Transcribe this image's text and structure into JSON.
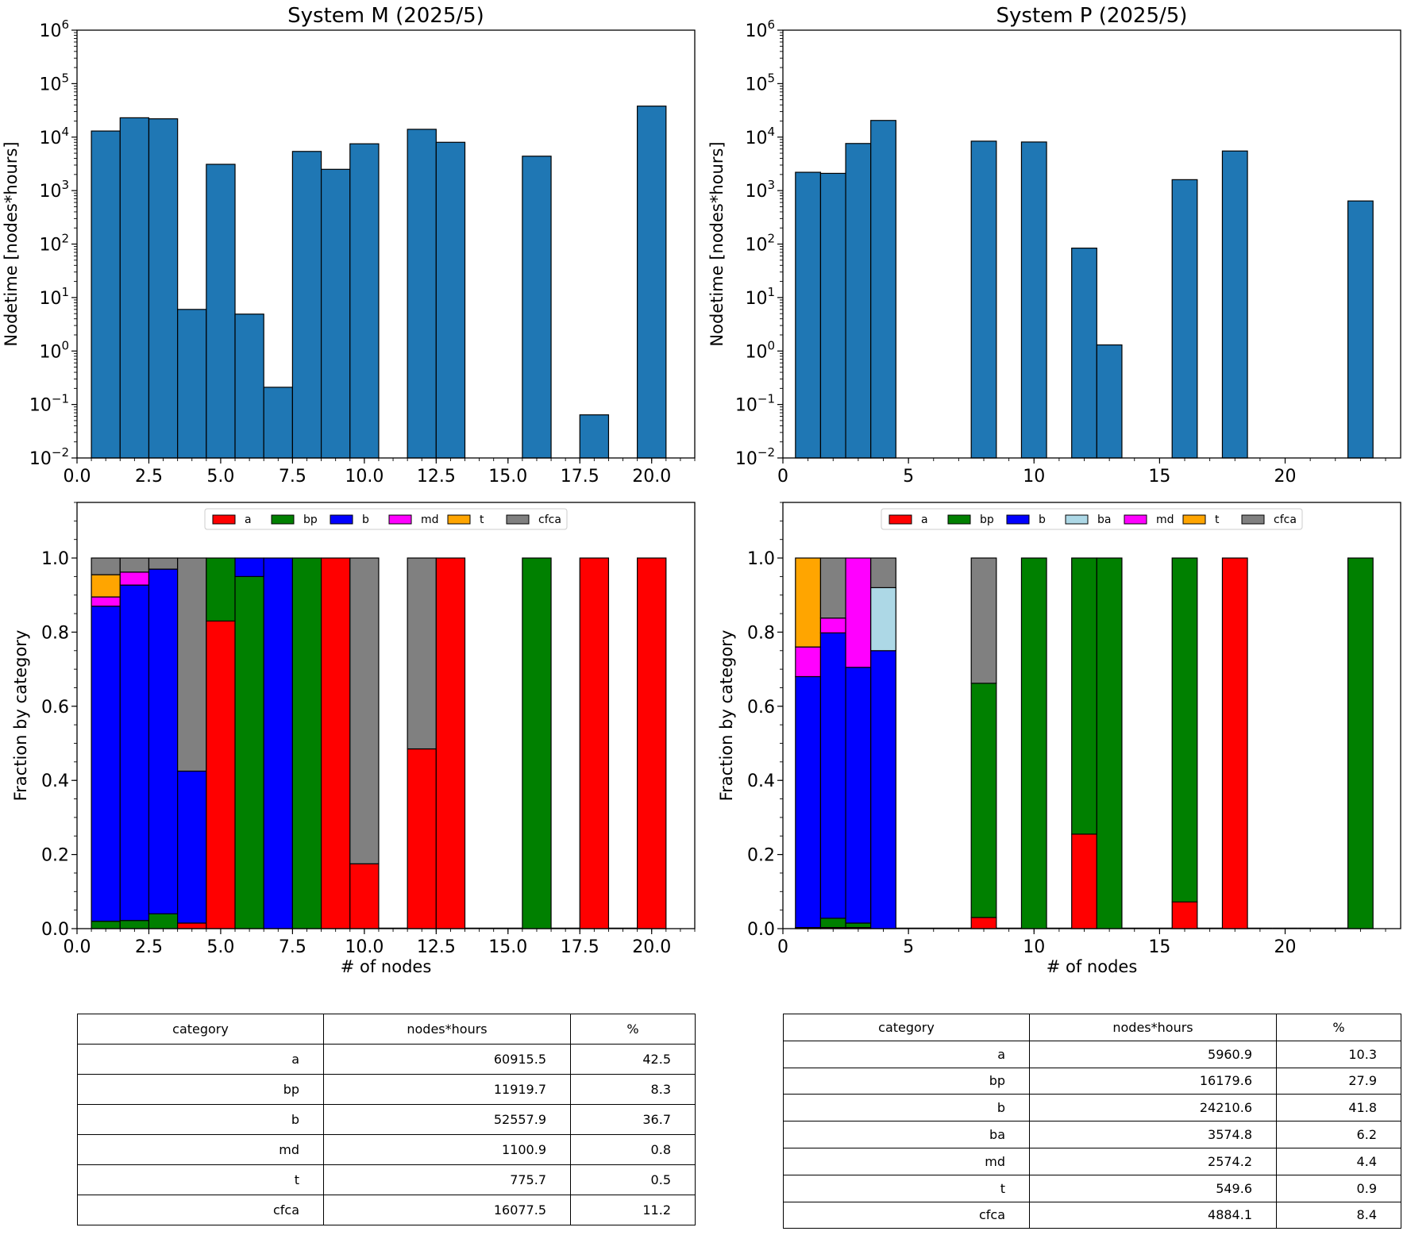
{
  "chart_data": [
    {
      "id": "histM",
      "type": "bar",
      "title": "System M (2025/5)",
      "xlabel": "",
      "ylabel": "Nodetime [nodes*hours]",
      "yscale": "log",
      "ylim": [
        0.01,
        1000000
      ],
      "xlim": [
        0,
        21.5
      ],
      "xticks": [
        "0.0",
        "2.5",
        "5.0",
        "7.5",
        "10.0",
        "12.5",
        "15.0",
        "17.5",
        "20.0"
      ],
      "x": [
        1,
        2,
        3,
        4,
        5,
        6,
        7,
        8,
        9,
        10,
        12,
        13,
        16,
        18,
        20
      ],
      "values": [
        13000,
        23000,
        22000,
        6,
        3100,
        4.9,
        0.21,
        5400,
        2500,
        7500,
        14000,
        8000,
        4400,
        0.064,
        38000
      ],
      "color": "#1f77b4"
    },
    {
      "id": "histP",
      "type": "bar",
      "title": "System P (2025/5)",
      "xlabel": "",
      "ylabel": "Nodetime [nodes*hours]",
      "yscale": "log",
      "ylim": [
        0.01,
        1000000
      ],
      "xlim": [
        0,
        24.6
      ],
      "xticks": [
        "0",
        "5",
        "10",
        "15",
        "20"
      ],
      "x": [
        1,
        2,
        3,
        4,
        8,
        10,
        12,
        13,
        16,
        18,
        23
      ],
      "values": [
        2200,
        2100,
        7600,
        20500,
        8400,
        8100,
        84,
        1.3,
        1600,
        5500,
        640
      ],
      "color": "#1f77b4"
    },
    {
      "id": "fracM",
      "type": "bar",
      "stacked": true,
      "xlabel": "# of nodes",
      "ylabel": "Fraction by category",
      "ylim": [
        0,
        1.15
      ],
      "xlim": [
        0,
        21.5
      ],
      "xticks": [
        "0.0",
        "2.5",
        "5.0",
        "7.5",
        "10.0",
        "12.5",
        "15.0",
        "17.5",
        "20.0"
      ],
      "yticks": [
        "0.0",
        "0.2",
        "0.4",
        "0.6",
        "0.8",
        "1.0"
      ],
      "x": [
        1,
        2,
        3,
        4,
        5,
        6,
        7,
        8,
        9,
        10,
        12,
        13,
        16,
        18,
        20
      ],
      "empty_x": [
        11,
        14,
        15,
        17,
        19
      ],
      "legend_position": "upper center",
      "series": [
        {
          "name": "a",
          "color": "#ff0000",
          "values": [
            0,
            0,
            0,
            0.015,
            0.83,
            0,
            0,
            0,
            1,
            0.175,
            0.485,
            1,
            0,
            1,
            1
          ]
        },
        {
          "name": "bp",
          "color": "#008000",
          "values": [
            0.02,
            0.022,
            0.04,
            0,
            0.17,
            0.95,
            0,
            1,
            0,
            0,
            0,
            0,
            1,
            0,
            0
          ]
        },
        {
          "name": "b",
          "color": "#0000ff",
          "values": [
            0.85,
            0.905,
            0.93,
            0.41,
            0,
            0.05,
            1,
            0,
            0,
            0,
            0,
            0,
            0,
            0,
            0
          ]
        },
        {
          "name": "md",
          "color": "#ff00ff",
          "values": [
            0.025,
            0.035,
            0,
            0,
            0,
            0,
            0,
            0,
            0,
            0,
            0,
            0,
            0,
            0,
            0
          ]
        },
        {
          "name": "t",
          "color": "#ffa500",
          "values": [
            0.06,
            0,
            0,
            0,
            0,
            0,
            0,
            0,
            0,
            0,
            0,
            0,
            0,
            0,
            0
          ]
        },
        {
          "name": "cfca",
          "color": "#808080",
          "values": [
            0.045,
            0.038,
            0.03,
            0.575,
            0,
            0,
            0,
            0,
            0,
            0.825,
            0.515,
            0,
            0,
            0,
            0
          ]
        }
      ]
    },
    {
      "id": "fracP",
      "type": "bar",
      "stacked": true,
      "xlabel": "# of nodes",
      "ylabel": "Fraction by category",
      "ylim": [
        0,
        1.15
      ],
      "xlim": [
        0,
        24.6
      ],
      "xticks": [
        "0",
        "5",
        "10",
        "15",
        "20"
      ],
      "yticks": [
        "0.0",
        "0.2",
        "0.4",
        "0.6",
        "0.8",
        "1.0"
      ],
      "x": [
        1,
        2,
        3,
        4,
        8,
        10,
        12,
        13,
        16,
        18,
        23
      ],
      "empty_x": [
        5,
        6,
        7,
        9,
        11,
        14,
        15,
        17,
        19,
        20,
        21,
        22
      ],
      "legend_position": "upper center",
      "series": [
        {
          "name": "a",
          "color": "#ff0000",
          "values": [
            0.003,
            0.003,
            0.003,
            0,
            0.03,
            0,
            0.255,
            0,
            0.072,
            1,
            0
          ]
        },
        {
          "name": "bp",
          "color": "#008000",
          "values": [
            0,
            0.025,
            0.012,
            0,
            0.632,
            1,
            0.745,
            1,
            0.928,
            0,
            1
          ]
        },
        {
          "name": "b",
          "color": "#0000ff",
          "values": [
            0.677,
            0.77,
            0.69,
            0.75,
            0,
            0,
            0,
            0,
            0,
            0,
            0
          ]
        },
        {
          "name": "ba",
          "color": "#add8e6",
          "values": [
            0,
            0,
            0,
            0.17,
            0,
            0,
            0,
            0,
            0,
            0,
            0
          ]
        },
        {
          "name": "md",
          "color": "#ff00ff",
          "values": [
            0.08,
            0.04,
            0.295,
            0,
            0,
            0,
            0,
            0,
            0,
            0,
            0
          ]
        },
        {
          "name": "t",
          "color": "#ffa500",
          "values": [
            0.24,
            0,
            0,
            0,
            0,
            0,
            0,
            0,
            0,
            0,
            0
          ]
        },
        {
          "name": "cfca",
          "color": "#808080",
          "values": [
            0,
            0.162,
            0,
            0.08,
            0.338,
            0,
            0,
            0,
            0,
            0,
            0
          ]
        }
      ]
    },
    {
      "id": "tableM",
      "type": "table",
      "columns": [
        "category",
        "nodes*hours",
        "%"
      ],
      "rows": [
        [
          "a",
          "60915.5",
          "42.5"
        ],
        [
          "bp",
          "11919.7",
          "8.3"
        ],
        [
          "b",
          "52557.9",
          "36.7"
        ],
        [
          "md",
          "1100.9",
          "0.8"
        ],
        [
          "t",
          "775.7",
          "0.5"
        ],
        [
          "cfca",
          "16077.5",
          "11.2"
        ]
      ]
    },
    {
      "id": "tableP",
      "type": "table",
      "columns": [
        "category",
        "nodes*hours",
        "%"
      ],
      "rows": [
        [
          "a",
          "5960.9",
          "10.3"
        ],
        [
          "bp",
          "16179.6",
          "27.9"
        ],
        [
          "b",
          "24210.6",
          "41.8"
        ],
        [
          "ba",
          "3574.8",
          "6.2"
        ],
        [
          "md",
          "2574.2",
          "4.4"
        ],
        [
          "t",
          "549.6",
          "0.9"
        ],
        [
          "cfca",
          "4884.1",
          "8.4"
        ]
      ]
    }
  ]
}
